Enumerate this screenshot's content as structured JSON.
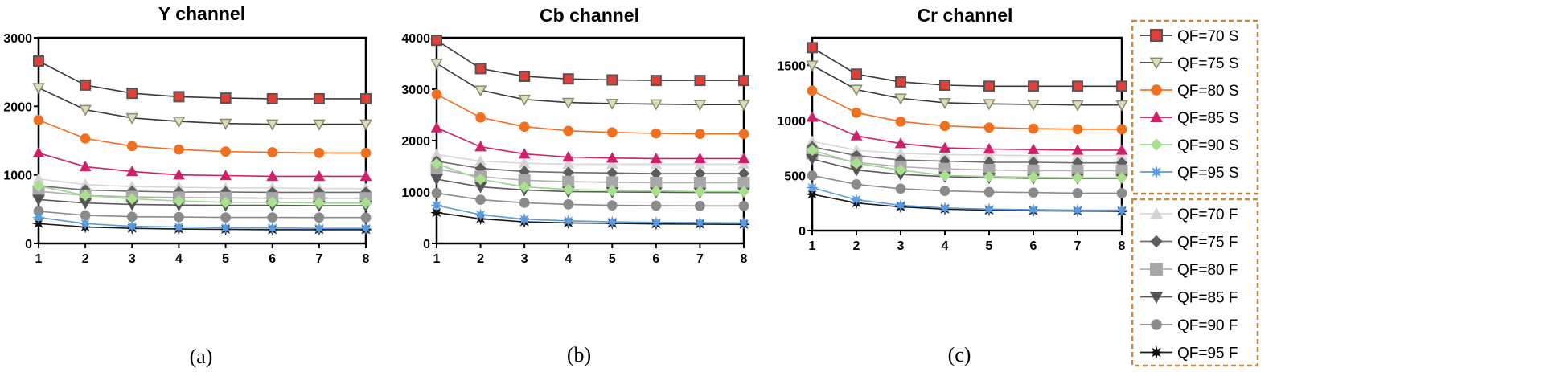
{
  "chart_data": [
    {
      "type": "line",
      "title": "Y channel",
      "caption": "(a)",
      "x": [
        1,
        2,
        3,
        4,
        5,
        6,
        7,
        8
      ],
      "x_ticks": [
        "1",
        "2",
        "3",
        "4",
        "5",
        "6",
        "7",
        "8"
      ],
      "ylim": [
        0,
        3000
      ],
      "y_ticks": [
        0,
        1000,
        2000,
        3000
      ],
      "series": [
        {
          "name": "QF=70 S",
          "values": [
            2660,
            2310,
            2190,
            2140,
            2120,
            2110,
            2110,
            2110
          ]
        },
        {
          "name": "QF=75 S",
          "values": [
            2270,
            1950,
            1830,
            1780,
            1750,
            1740,
            1740,
            1740
          ]
        },
        {
          "name": "QF=80 S",
          "values": [
            1800,
            1530,
            1420,
            1370,
            1340,
            1330,
            1320,
            1320
          ]
        },
        {
          "name": "QF=85 S",
          "values": [
            1320,
            1120,
            1050,
            1000,
            990,
            980,
            980,
            980
          ]
        },
        {
          "name": "QF=90 S",
          "values": [
            840,
            700,
            650,
            620,
            600,
            600,
            590,
            590
          ]
        },
        {
          "name": "QF=95 S",
          "values": [
            380,
            290,
            250,
            240,
            230,
            225,
            220,
            220
          ]
        },
        {
          "name": "QF=70 F",
          "values": [
            940,
            860,
            830,
            820,
            810,
            810,
            800,
            800
          ]
        },
        {
          "name": "QF=75 F",
          "values": [
            840,
            780,
            760,
            750,
            750,
            745,
            745,
            745
          ]
        },
        {
          "name": "QF=80 F",
          "values": [
            760,
            700,
            680,
            670,
            665,
            660,
            660,
            660
          ]
        },
        {
          "name": "QF=85 F",
          "values": [
            640,
            590,
            570,
            560,
            555,
            555,
            550,
            550
          ]
        },
        {
          "name": "QF=90 F",
          "values": [
            470,
            410,
            390,
            385,
            380,
            380,
            378,
            378
          ]
        },
        {
          "name": "QF=95 F",
          "values": [
            290,
            240,
            220,
            210,
            205,
            200,
            200,
            200
          ]
        }
      ]
    },
    {
      "type": "line",
      "title": "Cb channel",
      "caption": "(b)",
      "x": [
        1,
        2,
        3,
        4,
        5,
        6,
        7,
        8
      ],
      "x_ticks": [
        "1",
        "2",
        "3",
        "4",
        "5",
        "6",
        "7",
        "8"
      ],
      "ylim": [
        0,
        4000
      ],
      "y_ticks": [
        0,
        1000,
        2000,
        3000,
        4000
      ],
      "series": [
        {
          "name": "QF=70 S",
          "values": [
            3950,
            3400,
            3250,
            3200,
            3180,
            3170,
            3170,
            3170
          ]
        },
        {
          "name": "QF=75 S",
          "values": [
            3500,
            2980,
            2800,
            2740,
            2720,
            2710,
            2700,
            2700
          ]
        },
        {
          "name": "QF=80 S",
          "values": [
            2900,
            2450,
            2270,
            2190,
            2160,
            2140,
            2130,
            2130
          ]
        },
        {
          "name": "QF=85 S",
          "values": [
            2250,
            1880,
            1740,
            1680,
            1660,
            1650,
            1650,
            1650
          ]
        },
        {
          "name": "QF=90 S",
          "values": [
            1550,
            1250,
            1100,
            1050,
            1030,
            1020,
            1010,
            1010
          ]
        },
        {
          "name": "QF=95 S",
          "values": [
            740,
            560,
            470,
            440,
            420,
            410,
            405,
            400
          ]
        },
        {
          "name": "QF=70 F",
          "values": [
            1730,
            1600,
            1560,
            1540,
            1540,
            1540,
            1540,
            1540
          ]
        },
        {
          "name": "QF=75 F",
          "values": [
            1600,
            1460,
            1400,
            1380,
            1370,
            1360,
            1360,
            1360
          ]
        },
        {
          "name": "QF=80 F",
          "values": [
            1450,
            1300,
            1230,
            1200,
            1190,
            1180,
            1180,
            1180
          ]
        },
        {
          "name": "QF=85 F",
          "values": [
            1250,
            1100,
            1040,
            1010,
            1000,
            995,
            990,
            990
          ]
        },
        {
          "name": "QF=90 F",
          "values": [
            980,
            850,
            790,
            760,
            740,
            735,
            730,
            730
          ]
        },
        {
          "name": "QF=95 F",
          "values": [
            600,
            480,
            420,
            400,
            390,
            380,
            375,
            370
          ]
        }
      ]
    },
    {
      "type": "line",
      "title": "Cr channel",
      "caption": "(c)",
      "x": [
        1,
        2,
        3,
        4,
        5,
        6,
        7,
        8
      ],
      "x_ticks": [
        "1",
        "2",
        "3",
        "4",
        "5",
        "6",
        "7",
        "8"
      ],
      "ylim": [
        0,
        1750
      ],
      "y_ticks": [
        0,
        500,
        1000,
        1500
      ],
      "series": [
        {
          "name": "QF=70 S",
          "values": [
            1660,
            1420,
            1350,
            1320,
            1310,
            1310,
            1310,
            1310
          ]
        },
        {
          "name": "QF=75 S",
          "values": [
            1500,
            1280,
            1200,
            1160,
            1150,
            1145,
            1140,
            1140
          ]
        },
        {
          "name": "QF=80 S",
          "values": [
            1270,
            1070,
            990,
            950,
            935,
            925,
            920,
            920
          ]
        },
        {
          "name": "QF=85 S",
          "values": [
            1030,
            860,
            790,
            750,
            740,
            735,
            730,
            730
          ]
        },
        {
          "name": "QF=90 S",
          "values": [
            730,
            610,
            550,
            500,
            490,
            485,
            480,
            480
          ]
        },
        {
          "name": "QF=95 S",
          "values": [
            390,
            280,
            230,
            205,
            195,
            190,
            185,
            185
          ]
        },
        {
          "name": "QF=70 F",
          "values": [
            810,
            730,
            700,
            690,
            685,
            680,
            680,
            680
          ]
        },
        {
          "name": "QF=75 F",
          "values": [
            760,
            680,
            640,
            630,
            620,
            620,
            615,
            615
          ]
        },
        {
          "name": "QF=80 F",
          "values": [
            700,
            620,
            580,
            560,
            550,
            545,
            545,
            545
          ]
        },
        {
          "name": "QF=85 F",
          "values": [
            650,
            550,
            510,
            490,
            480,
            475,
            475,
            475
          ]
        },
        {
          "name": "QF=90 F",
          "values": [
            500,
            420,
            380,
            360,
            350,
            345,
            340,
            340
          ]
        },
        {
          "name": "QF=95 F",
          "values": [
            330,
            250,
            215,
            195,
            185,
            180,
            178,
            175
          ]
        }
      ]
    }
  ],
  "series_styles": [
    {
      "name": "QF=70 S",
      "color": "#3a3a3a",
      "marker": "square",
      "marker_fill": "#e0403a",
      "marker_stroke": "#555555"
    },
    {
      "name": "QF=75 S",
      "color": "#3a3a3a",
      "marker": "triangle-down",
      "marker_fill": "#ddddb8",
      "marker_stroke": "#8a8a70"
    },
    {
      "name": "QF=80 S",
      "color": "#f07020",
      "marker": "circle",
      "marker_fill": "#f07020",
      "marker_stroke": "#f07020"
    },
    {
      "name": "QF=85 S",
      "color": "#d0206a",
      "marker": "triangle-up",
      "marker_fill": "#d0206a",
      "marker_stroke": "#d0206a"
    },
    {
      "name": "QF=90 S",
      "color": "#9ad68c",
      "marker": "diamond",
      "marker_fill": "#a8e08e",
      "marker_stroke": "#a8e08e"
    },
    {
      "name": "QF=95 S",
      "color": "#5a9be0",
      "marker": "star",
      "marker_fill": "#5a9be0",
      "marker_stroke": "#5a9be0"
    },
    {
      "name": "QF=70 F",
      "color": "#d8d8d8",
      "marker": "triangle-up",
      "marker_fill": "#d4d4d4",
      "marker_stroke": "#d4d4d4"
    },
    {
      "name": "QF=75 F",
      "color": "#6e6e6e",
      "marker": "diamond",
      "marker_fill": "#5e5e5e",
      "marker_stroke": "#5e5e5e"
    },
    {
      "name": "QF=80 F",
      "color": "#b0b0b0",
      "marker": "square",
      "marker_fill": "#a8a8a8",
      "marker_stroke": "#a8a8a8"
    },
    {
      "name": "QF=85 F",
      "color": "#5a5a5a",
      "marker": "triangle-down",
      "marker_fill": "#555555",
      "marker_stroke": "#555555"
    },
    {
      "name": "QF=90 F",
      "color": "#8a8a8a",
      "marker": "circle",
      "marker_fill": "#8a8a8a",
      "marker_stroke": "#8a8a8a"
    },
    {
      "name": "QF=95 F",
      "color": "#1a1a1a",
      "marker": "star",
      "marker_fill": "#111111",
      "marker_stroke": "#111111"
    }
  ],
  "legend": {
    "border_color": "#c8863c",
    "groups": [
      [
        "QF=70 S",
        "QF=75 S",
        "QF=80 S",
        "QF=85 S",
        "QF=90 S",
        "QF=95 S"
      ],
      [
        "QF=70 F",
        "QF=75 F",
        "QF=80 F",
        "QF=85 F",
        "QF=90 F",
        "QF=95 F"
      ]
    ]
  }
}
